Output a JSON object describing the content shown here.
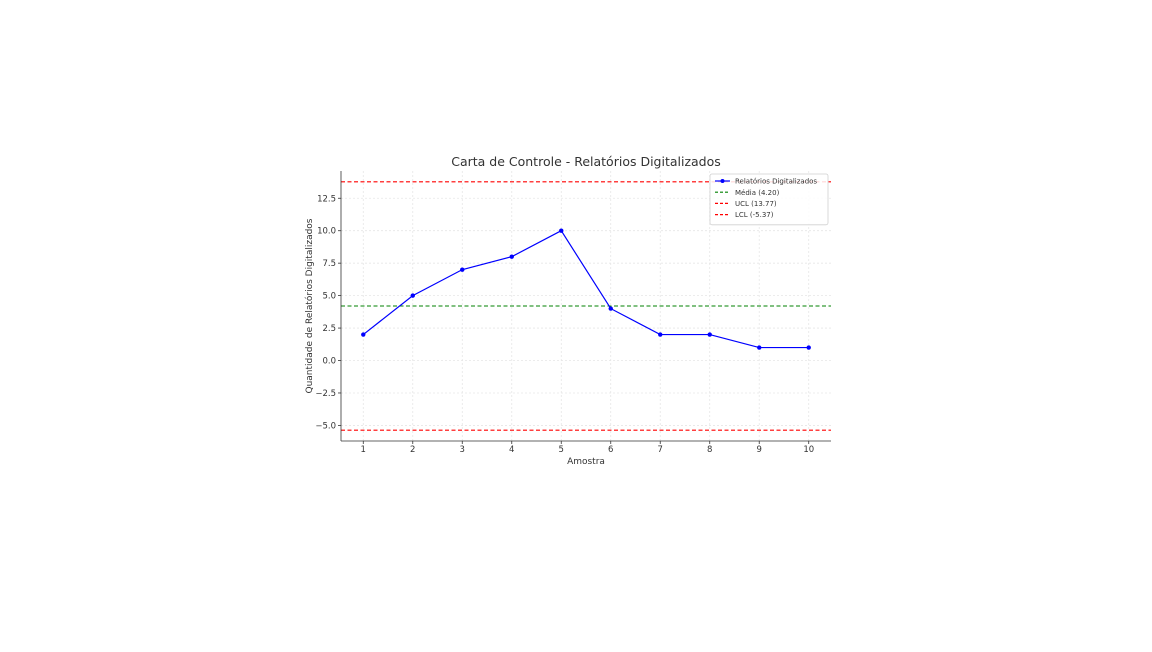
{
  "chart_data": {
    "type": "line",
    "title": "Carta de Controle - Relatórios Digitalizados",
    "xlabel": "Amostra",
    "ylabel": "Quantidade de Relatórios Digitalizados",
    "x": [
      1,
      2,
      3,
      4,
      5,
      6,
      7,
      8,
      9,
      10
    ],
    "x_ticks": [
      1,
      2,
      3,
      4,
      5,
      6,
      7,
      8,
      9,
      10
    ],
    "y_ticks": [
      -5.0,
      -2.5,
      0.0,
      2.5,
      5.0,
      7.5,
      10.0,
      12.5
    ],
    "y_tick_labels": [
      "−5.0",
      "−2.5",
      "0.0",
      "2.5",
      "5.0",
      "7.5",
      "10.0",
      "12.5"
    ],
    "xlim": [
      0.55,
      10.45
    ],
    "ylim": [
      -6.2,
      14.6
    ],
    "grid": true,
    "legend_position": "top-right",
    "series": [
      {
        "name": "Relatórios Digitalizados",
        "values": [
          2,
          5,
          7,
          8,
          10,
          4,
          2,
          2,
          1,
          1
        ],
        "color": "#0000ff",
        "style": "solid-marker"
      }
    ],
    "reference_lines": [
      {
        "name": "Média (4.20)",
        "value": 4.2,
        "color": "#008000",
        "style": "dashed"
      },
      {
        "name": "UCL (13.77)",
        "value": 13.77,
        "color": "#ff0000",
        "style": "dashed"
      },
      {
        "name": "LCL (-5.37)",
        "value": -5.37,
        "color": "#ff0000",
        "style": "dashed"
      }
    ]
  }
}
